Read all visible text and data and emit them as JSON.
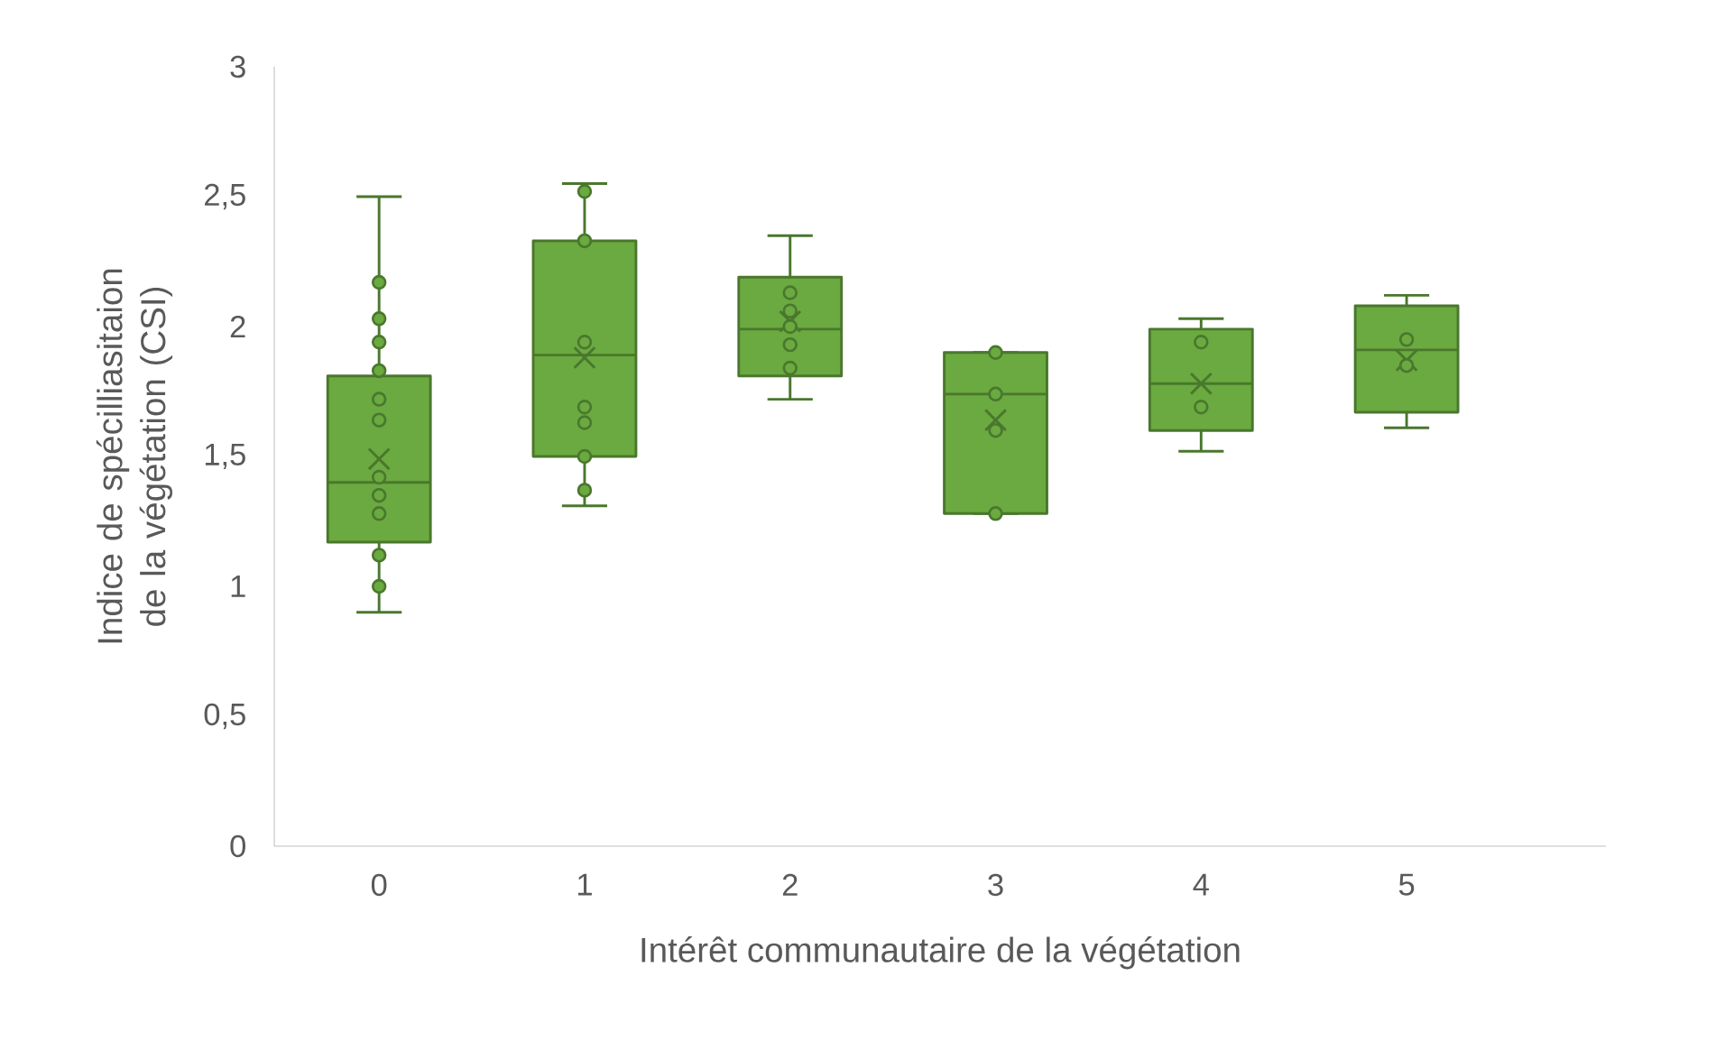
{
  "chart_data": {
    "type": "box",
    "xlabel": "Intérêt communautaire de la végétation",
    "ylabel": "Indice de spécilliasitaion de la végétation (CSI)",
    "categories": [
      "0",
      "1",
      "2",
      "3",
      "4",
      "5"
    ],
    "color": "#6aaa40",
    "boxes": [
      {
        "low": 0.9,
        "q1": 1.17,
        "median": 1.4,
        "q3": 1.81,
        "high": 2.5,
        "mean": 1.49
      },
      {
        "low": 1.31,
        "q1": 1.5,
        "median": 1.89,
        "q3": 2.33,
        "high": 2.55,
        "mean": 1.88
      },
      {
        "low": 1.72,
        "q1": 1.81,
        "median": 1.99,
        "q3": 2.19,
        "high": 2.35,
        "mean": 2.02
      },
      {
        "low": 1.28,
        "q1": 1.28,
        "median": 1.74,
        "q3": 1.9,
        "high": 1.9,
        "mean": 1.64
      },
      {
        "low": 1.52,
        "q1": 1.6,
        "median": 1.78,
        "q3": 1.99,
        "high": 2.03,
        "mean": 1.78
      },
      {
        "low": 1.61,
        "q1": 1.67,
        "median": 1.91,
        "q3": 2.08,
        "high": 2.12,
        "mean": 1.87
      }
    ],
    "series": [
      {
        "type": "scatter",
        "marker": "circle",
        "color": "#6aaa40",
        "x": [
          "0",
          "0",
          "0",
          "0",
          "0",
          "0",
          "0",
          "0",
          "0",
          "0",
          "0",
          "1",
          "1",
          "1",
          "1",
          "1",
          "1",
          "1",
          "1",
          "1",
          "2",
          "2",
          "2",
          "2",
          "2",
          "3",
          "3",
          "3",
          "3",
          "4",
          "4",
          "5",
          "5"
        ],
        "values": [
          2.17,
          2.03,
          1.94,
          1.83,
          1.72,
          1.64,
          1.42,
          1.35,
          1.28,
          1.12,
          1.0,
          2.52,
          2.33,
          1.94,
          1.69,
          1.63,
          1.5,
          1.37,
          null,
          null,
          2.13,
          2.06,
          1.93,
          1.84,
          2.0,
          1.9,
          1.74,
          1.6,
          1.28,
          1.94,
          1.69,
          1.95,
          1.85
        ]
      }
    ],
    "ylim": [
      0,
      3
    ],
    "yticks": [
      0,
      {
        "value": 0.5,
        "label": "0,5"
      },
      1,
      {
        "value": 1.5,
        "label": "1,5"
      },
      2,
      {
        "value": 2.5,
        "label": "2,5"
      },
      3
    ]
  }
}
